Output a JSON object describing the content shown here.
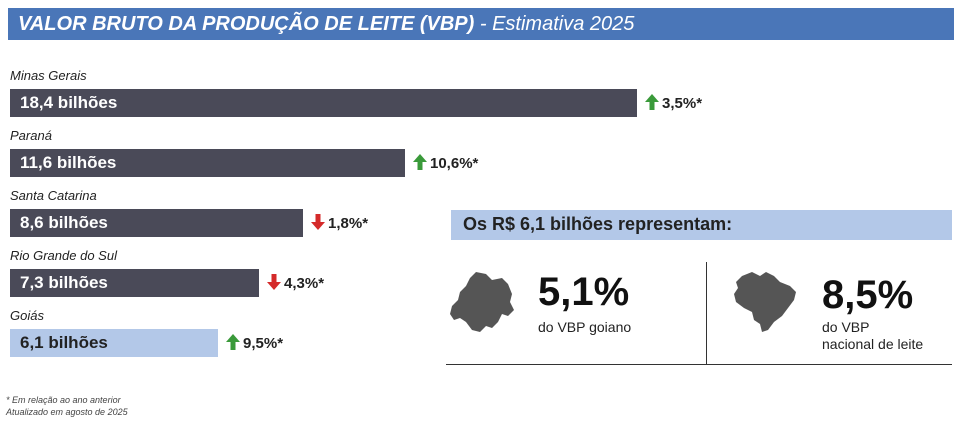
{
  "header": {
    "title_bold": "VALOR BRUTO DA PRODUÇÃO DE LEITE (VBP)",
    "title_rest": " - Estimativa 2025"
  },
  "chart_data": {
    "type": "bar",
    "orientation": "horizontal",
    "categories": [
      "Minas Gerais",
      "Paraná",
      "Santa Catarina",
      "Rio Grande do Sul",
      "Goiás"
    ],
    "values": [
      18.4,
      11.6,
      8.6,
      7.3,
      6.1
    ],
    "value_labels": [
      "18,4 bilhões",
      "11,6 bilhões",
      "8,6 bilhões",
      "7,3 bilhões",
      "6,1 bilhões"
    ],
    "changes": [
      {
        "label": "3,5%*",
        "direction": "up"
      },
      {
        "label": "10,6%*",
        "direction": "up"
      },
      {
        "label": "1,8%*",
        "direction": "down"
      },
      {
        "label": "4,3%*",
        "direction": "down"
      },
      {
        "label": "9,5%*",
        "direction": "up"
      }
    ],
    "bar_colors": [
      "#4a4a58",
      "#4a4a58",
      "#4a4a58",
      "#4a4a58",
      "#b3c8e8"
    ],
    "value_label_colors": [
      "#ffffff",
      "#ffffff",
      "#ffffff",
      "#ffffff",
      "#222222"
    ],
    "xlim": [
      0,
      18.4
    ],
    "grid": false
  },
  "summary": {
    "heading": "Os R$ 6,1 bilhões representam:",
    "left_value": "5,1%",
    "left_label": "do VBP goiano",
    "right_value": "8,5%",
    "right_label_line1": "do VBP",
    "right_label_line2": "nacional de leite"
  },
  "footnotes": {
    "line1": "* Em relação ao ano anterior",
    "line2": "Atualizado em agosto de 2025"
  },
  "colors": {
    "title_bar": "#4a76b8",
    "bar_dark": "#4a4a58",
    "bar_highlight": "#b3c8e8",
    "up": "#3a9a3a",
    "down": "#d42a2a",
    "map": "#555555"
  }
}
